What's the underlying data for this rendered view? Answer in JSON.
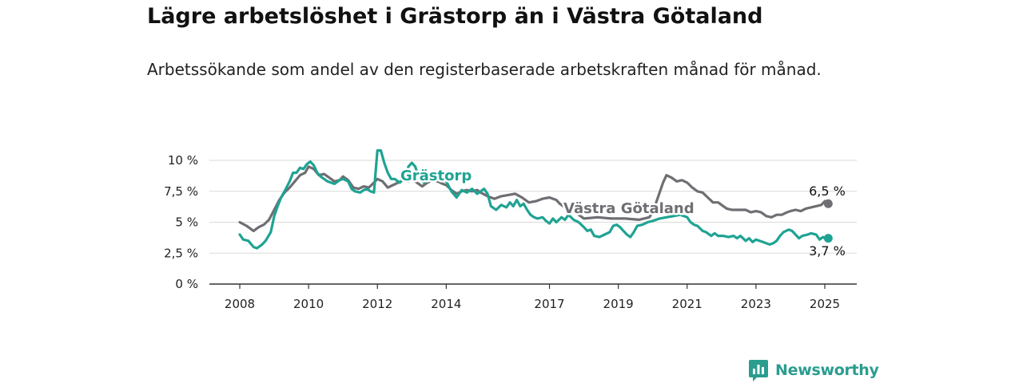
{
  "title": "Lägre arbetslöshet i Grästorp än i Västra Götaland",
  "subtitle": "Arbetssökande som andel av den registerbaserade arbetskraften månad för månad.",
  "brand": {
    "name": "Newsworthy",
    "color": "#2a9d8f",
    "icon": "bar-chart-speech-bubble-icon"
  },
  "chart_data": {
    "type": "line",
    "y_tick_labels": [
      "0 %",
      "2,5 %",
      "5 %",
      "7,5 %",
      "10 %"
    ],
    "y_ticks": [
      0,
      2.5,
      5,
      7.5,
      10
    ],
    "ylim": [
      0,
      11
    ],
    "xlim": [
      2007.7,
      2026.0
    ],
    "x_ticks": [
      2008,
      2010,
      2012,
      2014,
      2017,
      2019,
      2021,
      2023,
      2025
    ],
    "x_tick_labels": [
      "2008",
      "2010",
      "2012",
      "2014",
      "2017",
      "2019",
      "2021",
      "2023",
      "2025"
    ],
    "grid": true,
    "series": [
      {
        "name": "Västra Götaland",
        "color": "#6f6e73",
        "end_label": "6,5 %",
        "points": [
          [
            2008.0,
            5.0
          ],
          [
            2008.2,
            4.7
          ],
          [
            2008.4,
            4.3
          ],
          [
            2008.55,
            4.6
          ],
          [
            2008.7,
            4.8
          ],
          [
            2008.85,
            5.2
          ],
          [
            2009.0,
            6.0
          ],
          [
            2009.15,
            6.8
          ],
          [
            2009.3,
            7.4
          ],
          [
            2009.45,
            7.8
          ],
          [
            2009.6,
            8.3
          ],
          [
            2009.75,
            8.8
          ],
          [
            2009.9,
            9.0
          ],
          [
            2010.0,
            9.5
          ],
          [
            2010.15,
            9.3
          ],
          [
            2010.3,
            8.8
          ],
          [
            2010.45,
            8.9
          ],
          [
            2010.6,
            8.6
          ],
          [
            2010.75,
            8.3
          ],
          [
            2010.9,
            8.4
          ],
          [
            2011.0,
            8.7
          ],
          [
            2011.15,
            8.4
          ],
          [
            2011.3,
            7.8
          ],
          [
            2011.45,
            7.7
          ],
          [
            2011.6,
            7.9
          ],
          [
            2011.75,
            7.8
          ],
          [
            2011.9,
            8.2
          ],
          [
            2012.0,
            8.5
          ],
          [
            2012.15,
            8.3
          ],
          [
            2012.3,
            7.8
          ],
          [
            2012.45,
            8.0
          ],
          [
            2012.6,
            8.2
          ],
          [
            2012.75,
            8.4
          ],
          [
            2012.9,
            8.3
          ],
          [
            2013.0,
            8.5
          ],
          [
            2013.15,
            8.2
          ],
          [
            2013.3,
            7.9
          ],
          [
            2013.45,
            8.2
          ],
          [
            2013.6,
            8.4
          ],
          [
            2013.75,
            8.3
          ],
          [
            2013.9,
            8.1
          ],
          [
            2014.0,
            8.0
          ],
          [
            2014.15,
            7.6
          ],
          [
            2014.3,
            7.3
          ],
          [
            2014.45,
            7.5
          ],
          [
            2014.6,
            7.6
          ],
          [
            2014.75,
            7.5
          ],
          [
            2014.9,
            7.6
          ],
          [
            2015.0,
            7.4
          ],
          [
            2015.2,
            7.1
          ],
          [
            2015.4,
            6.9
          ],
          [
            2015.6,
            7.1
          ],
          [
            2015.8,
            7.2
          ],
          [
            2016.0,
            7.3
          ],
          [
            2016.2,
            7.0
          ],
          [
            2016.4,
            6.6
          ],
          [
            2016.6,
            6.7
          ],
          [
            2016.8,
            6.9
          ],
          [
            2017.0,
            7.0
          ],
          [
            2017.2,
            6.8
          ],
          [
            2017.3,
            6.5
          ],
          [
            2017.55,
            6.0
          ],
          [
            2017.8,
            5.7
          ],
          [
            2018.0,
            5.3
          ],
          [
            2018.4,
            5.4
          ],
          [
            2018.8,
            5.3
          ],
          [
            2019.2,
            5.3
          ],
          [
            2019.6,
            5.2
          ],
          [
            2019.9,
            5.4
          ],
          [
            2020.0,
            5.8
          ],
          [
            2020.15,
            7.0
          ],
          [
            2020.3,
            8.2
          ],
          [
            2020.4,
            8.8
          ],
          [
            2020.55,
            8.6
          ],
          [
            2020.7,
            8.3
          ],
          [
            2020.85,
            8.4
          ],
          [
            2021.0,
            8.2
          ],
          [
            2021.15,
            7.8
          ],
          [
            2021.3,
            7.5
          ],
          [
            2021.45,
            7.4
          ],
          [
            2021.6,
            7.0
          ],
          [
            2021.75,
            6.6
          ],
          [
            2021.9,
            6.6
          ],
          [
            2022.0,
            6.4
          ],
          [
            2022.15,
            6.1
          ],
          [
            2022.3,
            6.0
          ],
          [
            2022.5,
            6.0
          ],
          [
            2022.7,
            6.0
          ],
          [
            2022.85,
            5.8
          ],
          [
            2023.0,
            5.9
          ],
          [
            2023.15,
            5.8
          ],
          [
            2023.3,
            5.5
          ],
          [
            2023.45,
            5.4
          ],
          [
            2023.6,
            5.6
          ],
          [
            2023.75,
            5.6
          ],
          [
            2023.9,
            5.8
          ],
          [
            2024.0,
            5.9
          ],
          [
            2024.15,
            6.0
          ],
          [
            2024.3,
            5.9
          ],
          [
            2024.45,
            6.1
          ],
          [
            2024.6,
            6.2
          ],
          [
            2024.75,
            6.3
          ],
          [
            2024.9,
            6.4
          ],
          [
            2025.0,
            6.7
          ],
          [
            2025.1,
            6.5
          ]
        ]
      },
      {
        "name": "Grästorp",
        "color": "#1fa393",
        "end_label": "3,7 %",
        "points": [
          [
            2008.0,
            4.0
          ],
          [
            2008.1,
            3.6
          ],
          [
            2008.25,
            3.5
          ],
          [
            2008.4,
            3.0
          ],
          [
            2008.5,
            2.9
          ],
          [
            2008.65,
            3.2
          ],
          [
            2008.75,
            3.5
          ],
          [
            2008.9,
            4.2
          ],
          [
            2009.0,
            5.5
          ],
          [
            2009.1,
            6.3
          ],
          [
            2009.2,
            7.0
          ],
          [
            2009.3,
            7.5
          ],
          [
            2009.45,
            8.3
          ],
          [
            2009.55,
            9.0
          ],
          [
            2009.65,
            9.0
          ],
          [
            2009.75,
            9.4
          ],
          [
            2009.85,
            9.3
          ],
          [
            2009.95,
            9.7
          ],
          [
            2010.05,
            9.9
          ],
          [
            2010.15,
            9.6
          ],
          [
            2010.25,
            9.0
          ],
          [
            2010.35,
            8.7
          ],
          [
            2010.45,
            8.5
          ],
          [
            2010.55,
            8.3
          ],
          [
            2010.65,
            8.2
          ],
          [
            2010.75,
            8.1
          ],
          [
            2010.9,
            8.4
          ],
          [
            2011.0,
            8.5
          ],
          [
            2011.15,
            8.3
          ],
          [
            2011.25,
            7.7
          ],
          [
            2011.35,
            7.5
          ],
          [
            2011.5,
            7.4
          ],
          [
            2011.6,
            7.6
          ],
          [
            2011.7,
            7.7
          ],
          [
            2011.8,
            7.5
          ],
          [
            2011.9,
            7.4
          ],
          [
            2012.0,
            10.8
          ],
          [
            2012.1,
            10.8
          ],
          [
            2012.2,
            9.8
          ],
          [
            2012.3,
            9.0
          ],
          [
            2012.4,
            8.5
          ],
          [
            2012.5,
            8.5
          ],
          [
            2012.65,
            8.2
          ],
          [
            2012.8,
            8.6
          ],
          [
            2012.9,
            9.5
          ],
          [
            2013.0,
            9.8
          ],
          [
            2013.1,
            9.5
          ],
          [
            2013.2,
            8.6
          ],
          [
            2013.35,
            8.2
          ],
          [
            2013.5,
            8.5
          ],
          [
            2013.65,
            8.4
          ],
          [
            2013.8,
            8.5
          ],
          [
            2014.0,
            8.3
          ],
          [
            2014.15,
            7.5
          ],
          [
            2014.3,
            7.0
          ],
          [
            2014.45,
            7.6
          ],
          [
            2014.6,
            7.4
          ],
          [
            2014.75,
            7.7
          ],
          [
            2014.9,
            7.3
          ],
          [
            2015.0,
            7.5
          ],
          [
            2015.1,
            7.7
          ],
          [
            2015.2,
            7.3
          ],
          [
            2015.3,
            6.3
          ],
          [
            2015.45,
            6.0
          ],
          [
            2015.6,
            6.4
          ],
          [
            2015.75,
            6.2
          ],
          [
            2015.85,
            6.6
          ],
          [
            2015.95,
            6.3
          ],
          [
            2016.05,
            6.8
          ],
          [
            2016.15,
            6.3
          ],
          [
            2016.25,
            6.5
          ],
          [
            2016.35,
            6.0
          ],
          [
            2016.45,
            5.6
          ],
          [
            2016.55,
            5.4
          ],
          [
            2016.65,
            5.3
          ],
          [
            2016.8,
            5.4
          ],
          [
            2016.9,
            5.1
          ],
          [
            2017.0,
            4.9
          ],
          [
            2017.1,
            5.3
          ],
          [
            2017.2,
            5.0
          ],
          [
            2017.35,
            5.4
          ],
          [
            2017.45,
            5.2
          ],
          [
            2017.55,
            5.6
          ],
          [
            2017.7,
            5.2
          ],
          [
            2017.85,
            5.0
          ],
          [
            2018.0,
            4.6
          ],
          [
            2018.1,
            4.3
          ],
          [
            2018.2,
            4.4
          ],
          [
            2018.3,
            3.9
          ],
          [
            2018.45,
            3.8
          ],
          [
            2018.6,
            4.0
          ],
          [
            2018.75,
            4.2
          ],
          [
            2018.85,
            4.7
          ],
          [
            2018.95,
            4.8
          ],
          [
            2019.05,
            4.6
          ],
          [
            2019.15,
            4.3
          ],
          [
            2019.25,
            4.0
          ],
          [
            2019.35,
            3.8
          ],
          [
            2019.45,
            4.2
          ],
          [
            2019.55,
            4.7
          ],
          [
            2019.7,
            4.8
          ],
          [
            2019.85,
            5.0
          ],
          [
            2020.0,
            5.1
          ],
          [
            2020.2,
            5.3
          ],
          [
            2020.4,
            5.4
          ],
          [
            2020.6,
            5.5
          ],
          [
            2020.8,
            5.6
          ],
          [
            2021.0,
            5.4
          ],
          [
            2021.1,
            5.0
          ],
          [
            2021.2,
            4.8
          ],
          [
            2021.3,
            4.7
          ],
          [
            2021.45,
            4.3
          ],
          [
            2021.55,
            4.2
          ],
          [
            2021.7,
            3.9
          ],
          [
            2021.8,
            4.1
          ],
          [
            2021.9,
            3.9
          ],
          [
            2022.05,
            3.9
          ],
          [
            2022.2,
            3.8
          ],
          [
            2022.35,
            3.9
          ],
          [
            2022.45,
            3.7
          ],
          [
            2022.55,
            3.9
          ],
          [
            2022.7,
            3.5
          ],
          [
            2022.8,
            3.7
          ],
          [
            2022.9,
            3.4
          ],
          [
            2023.0,
            3.6
          ],
          [
            2023.1,
            3.5
          ],
          [
            2023.2,
            3.4
          ],
          [
            2023.3,
            3.3
          ],
          [
            2023.4,
            3.2
          ],
          [
            2023.5,
            3.3
          ],
          [
            2023.6,
            3.5
          ],
          [
            2023.7,
            3.9
          ],
          [
            2023.8,
            4.2
          ],
          [
            2023.95,
            4.4
          ],
          [
            2024.05,
            4.3
          ],
          [
            2024.15,
            4.0
          ],
          [
            2024.25,
            3.7
          ],
          [
            2024.35,
            3.9
          ],
          [
            2024.5,
            4.0
          ],
          [
            2024.6,
            4.1
          ],
          [
            2024.75,
            4.0
          ],
          [
            2024.85,
            3.6
          ],
          [
            2024.95,
            3.8
          ],
          [
            2025.05,
            3.6
          ],
          [
            2025.1,
            3.7
          ]
        ]
      }
    ]
  }
}
